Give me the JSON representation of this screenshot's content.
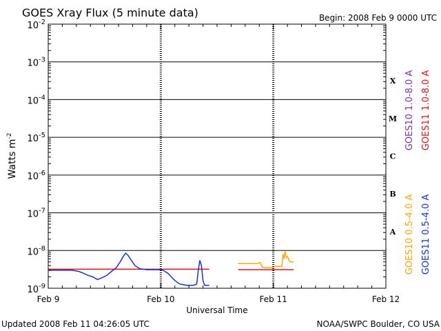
{
  "chart_data": {
    "type": "line",
    "title": "GOES Xray Flux (5 minute data)",
    "begin_label": "Begin:  2008 Feb 9 0000 UTC",
    "xlabel": "Universal Time",
    "ylabel_base": "Watts m",
    "ylabel_exp": "-2",
    "y_scale": "log",
    "ylim": [
      1e-09,
      0.01
    ],
    "xlim": [
      "2008-02-09 00:00",
      "2008-02-12 00:00"
    ],
    "x_ticks": [
      {
        "date": "2008-02-09",
        "label": "Feb 9"
      },
      {
        "date": "2008-02-10",
        "label": "Feb 10"
      },
      {
        "date": "2008-02-11",
        "label": "Feb 11"
      },
      {
        "date": "2008-02-12",
        "label": "Feb 12"
      }
    ],
    "y_ticks": [
      {
        "value": 1e-09,
        "base": "10",
        "exp": "-9"
      },
      {
        "value": 1e-08,
        "base": "10",
        "exp": "-8"
      },
      {
        "value": 1e-07,
        "base": "10",
        "exp": "-7"
      },
      {
        "value": 1e-06,
        "base": "10",
        "exp": "-6"
      },
      {
        "value": 1e-05,
        "base": "10",
        "exp": "-5"
      },
      {
        "value": 0.0001,
        "base": "10",
        "exp": "-4"
      },
      {
        "value": 0.001,
        "base": "10",
        "exp": "-3"
      },
      {
        "value": 0.01,
        "base": "10",
        "exp": "-2"
      }
    ],
    "flare_classes": [
      {
        "label": "A",
        "value": 3.16e-08
      },
      {
        "label": "B",
        "value": 3.16e-07
      },
      {
        "label": "C",
        "value": 3.16e-06
      },
      {
        "label": "M",
        "value": 3.16e-05
      },
      {
        "label": "X",
        "value": 0.000316
      }
    ],
    "grid": true,
    "legend_placement": "right, rotated vertical",
    "legend": [
      {
        "label": "GOES10 1.0-8.0 A",
        "color": "#7b2fb5"
      },
      {
        "label": "GOES11 1.0-8.0 A",
        "color": "#e01010"
      },
      {
        "label": "GOES10 0.5-4.0 A",
        "color": "#ffa500"
      },
      {
        "label": "GOES11 0.5-4.0 A",
        "color": "#1030e0"
      }
    ],
    "series": [
      {
        "name": "GOES11 1.0-8.0 A",
        "color": "#e01010",
        "segments": [
          [
            [
              "2008-02-09 00:00",
              3.2e-09
            ],
            [
              "2008-02-10 10:20",
              3.2e-09
            ]
          ],
          [
            [
              "2008-02-10 16:30",
              3.1e-09
            ],
            [
              "2008-02-11 04:20",
              3.1e-09
            ]
          ]
        ]
      },
      {
        "name": "GOES10 0.5-4.0 A",
        "color": "#ffa500",
        "segments": [
          [
            [
              "2008-02-10 16:30",
              4.5e-09
            ],
            [
              "2008-02-10 20:30",
              4.5e-09
            ],
            [
              "2008-02-10 21:10",
              4.8e-09
            ],
            [
              "2008-02-10 21:40",
              3.6e-09
            ],
            [
              "2008-02-10 22:10",
              3.5e-09
            ],
            [
              "2008-02-10 23:00",
              3.5e-09
            ],
            [
              "2008-02-11 00:00",
              3.5e-09
            ],
            [
              "2008-02-11 00:20",
              3.8e-09
            ],
            [
              "2008-02-11 01:00",
              3.8e-09
            ],
            [
              "2008-02-11 01:50",
              3.8e-09
            ],
            [
              "2008-02-11 02:05",
              8e-09
            ],
            [
              "2008-02-11 02:15",
              6e-09
            ],
            [
              "2008-02-11 02:30",
              9.5e-09
            ],
            [
              "2008-02-11 02:45",
              6.5e-09
            ],
            [
              "2008-02-11 03:00",
              7e-09
            ],
            [
              "2008-02-11 03:20",
              5.5e-09
            ],
            [
              "2008-02-11 03:40",
              5e-09
            ],
            [
              "2008-02-11 04:20",
              5e-09
            ]
          ]
        ]
      },
      {
        "name": "GOES11 0.5-4.0 A",
        "color": "#1030e0",
        "segments": [
          [
            [
              "2008-02-09 00:00",
              3e-09
            ],
            [
              "2008-02-09 05:00",
              3e-09
            ],
            [
              "2008-02-09 06:30",
              2.8e-09
            ],
            [
              "2008-02-09 07:30",
              2.5e-09
            ],
            [
              "2008-02-09 08:30",
              2.2e-09
            ],
            [
              "2008-02-09 09:30",
              2e-09
            ],
            [
              "2008-02-09 10:30",
              1.7e-09
            ],
            [
              "2008-02-09 11:30",
              1.9e-09
            ],
            [
              "2008-02-09 12:30",
              2.2e-09
            ],
            [
              "2008-02-09 13:30",
              2.8e-09
            ],
            [
              "2008-02-09 14:30",
              3.5e-09
            ],
            [
              "2008-02-09 15:20",
              5e-09
            ],
            [
              "2008-02-09 16:00",
              7e-09
            ],
            [
              "2008-02-09 16:30",
              8.5e-09
            ],
            [
              "2008-02-09 17:00",
              7.5e-09
            ],
            [
              "2008-02-09 17:30",
              6e-09
            ],
            [
              "2008-02-09 18:30",
              4e-09
            ],
            [
              "2008-02-09 19:30",
              3.3e-09
            ],
            [
              "2008-02-09 21:00",
              3.1e-09
            ],
            [
              "2008-02-10 00:00",
              3.1e-09
            ],
            [
              "2008-02-10 00:30",
              3e-09
            ],
            [
              "2008-02-10 01:30",
              2.5e-09
            ],
            [
              "2008-02-10 03:00",
              1.6e-09
            ],
            [
              "2008-02-10 04:00",
              1.3e-09
            ],
            [
              "2008-02-10 05:30",
              1.2e-09
            ],
            [
              "2008-02-10 07:00",
              1.2e-09
            ],
            [
              "2008-02-10 07:40",
              1.3e-09
            ],
            [
              "2008-02-10 08:00",
              3e-09
            ],
            [
              "2008-02-10 08:20",
              5.5e-09
            ],
            [
              "2008-02-10 08:40",
              4e-09
            ],
            [
              "2008-02-10 09:00",
              1.6e-09
            ],
            [
              "2008-02-10 09:20",
              1.2e-09
            ],
            [
              "2008-02-10 10:20",
              1.2e-09
            ]
          ]
        ]
      }
    ]
  },
  "footer": {
    "updated": "Updated 2008 Feb 11 04:26:05 UTC",
    "credit": "NOAA/SWPC Boulder, CO USA"
  }
}
